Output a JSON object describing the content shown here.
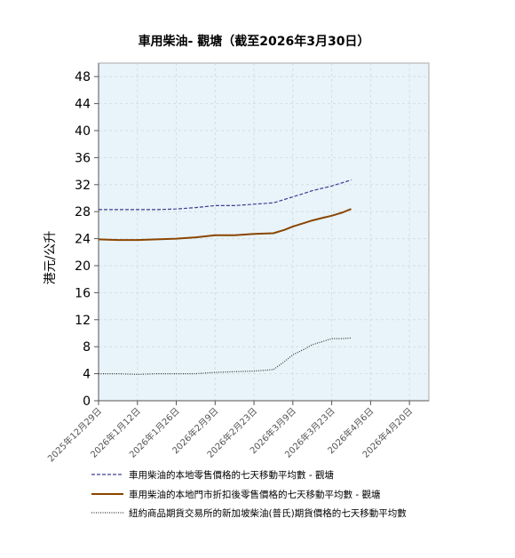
{
  "chart_data": {
    "type": "line",
    "title": "車用柴油- 觀塘（截至2026年3月30日）",
    "xlabel": "",
    "ylabel": "港元/公升",
    "ylim": [
      0,
      50
    ],
    "yticks": [
      0,
      4,
      8,
      12,
      16,
      20,
      24,
      28,
      32,
      36,
      40,
      44,
      48
    ],
    "xlim": [
      "2025-12-29",
      "2026-04-27"
    ],
    "xticks": [
      "2025-12-29",
      "2026-01-12",
      "2026-01-26",
      "2026-02-09",
      "2026-02-23",
      "2026-03-09",
      "2026-03-23",
      "2026-04-06",
      "2026-04-20"
    ],
    "xtick_labels": [
      "2025年12月29日",
      "2026年1月12日",
      "2026年1月26日",
      "2026年2月9日",
      "2026年2月23日",
      "2026年3月9日",
      "2026年3月23日",
      "2026年4月6日",
      "2026年4月20日"
    ],
    "grid": true,
    "legend_position": "bottom",
    "plot_background": "#e8f4fa",
    "series": [
      {
        "name": "車用柴油的本地零售價格的七天移動平均數 - 觀塘",
        "color": "#3d3d8f",
        "style": "dashed",
        "points": [
          [
            "2025-12-29",
            28.3
          ],
          [
            "2026-01-05",
            28.3
          ],
          [
            "2026-01-12",
            28.3
          ],
          [
            "2026-01-19",
            28.3
          ],
          [
            "2026-01-26",
            28.4
          ],
          [
            "2026-02-02",
            28.6
          ],
          [
            "2026-02-09",
            28.9
          ],
          [
            "2026-02-16",
            28.9
          ],
          [
            "2026-02-23",
            29.1
          ],
          [
            "2026-03-02",
            29.3
          ],
          [
            "2026-03-06",
            29.8
          ],
          [
            "2026-03-09",
            30.2
          ],
          [
            "2026-03-13",
            30.7
          ],
          [
            "2026-03-16",
            31.1
          ],
          [
            "2026-03-20",
            31.5
          ],
          [
            "2026-03-23",
            31.8
          ],
          [
            "2026-03-27",
            32.3
          ],
          [
            "2026-03-30",
            32.7
          ]
        ]
      },
      {
        "name": "車用柴油的本地門市折扣後零售價格的七天移動平均數 - 觀塘",
        "color": "#8b4500",
        "style": "solid",
        "points": [
          [
            "2025-12-29",
            23.9
          ],
          [
            "2026-01-05",
            23.8
          ],
          [
            "2026-01-12",
            23.8
          ],
          [
            "2026-01-19",
            23.9
          ],
          [
            "2026-01-26",
            24.0
          ],
          [
            "2026-02-02",
            24.2
          ],
          [
            "2026-02-09",
            24.5
          ],
          [
            "2026-02-16",
            24.5
          ],
          [
            "2026-02-23",
            24.7
          ],
          [
            "2026-03-02",
            24.8
          ],
          [
            "2026-03-06",
            25.3
          ],
          [
            "2026-03-09",
            25.8
          ],
          [
            "2026-03-13",
            26.3
          ],
          [
            "2026-03-16",
            26.7
          ],
          [
            "2026-03-20",
            27.1
          ],
          [
            "2026-03-23",
            27.4
          ],
          [
            "2026-03-27",
            27.9
          ],
          [
            "2026-03-30",
            28.4
          ]
        ]
      },
      {
        "name": "紐約商品期貨交易所的新加坡柴油(普氏)期貨價格的七天移動平均數",
        "color": "#333333",
        "style": "dotted",
        "points": [
          [
            "2025-12-29",
            4.0
          ],
          [
            "2026-01-05",
            4.0
          ],
          [
            "2026-01-12",
            3.9
          ],
          [
            "2026-01-19",
            4.0
          ],
          [
            "2026-01-26",
            4.0
          ],
          [
            "2026-02-02",
            4.0
          ],
          [
            "2026-02-09",
            4.2
          ],
          [
            "2026-02-16",
            4.3
          ],
          [
            "2026-02-23",
            4.4
          ],
          [
            "2026-03-02",
            4.6
          ],
          [
            "2026-03-06",
            5.8
          ],
          [
            "2026-03-09",
            6.8
          ],
          [
            "2026-03-13",
            7.6
          ],
          [
            "2026-03-16",
            8.3
          ],
          [
            "2026-03-20",
            8.8
          ],
          [
            "2026-03-23",
            9.2
          ],
          [
            "2026-03-27",
            9.2
          ],
          [
            "2026-03-30",
            9.3
          ]
        ]
      }
    ]
  }
}
